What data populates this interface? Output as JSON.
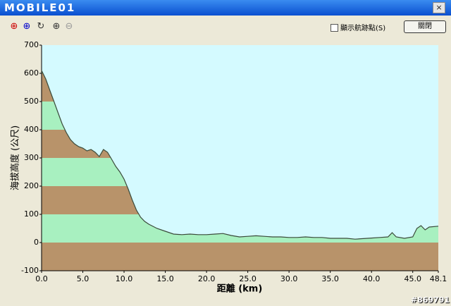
{
  "window": {
    "logo": "MOBILE01",
    "checkbox_label": "顯示航跡點(S)",
    "close_button": "關閉",
    "watermark": "#869791"
  },
  "chart_data": {
    "type": "line",
    "x_label": "距離 (km)",
    "y_label": "海拔高度 (公尺)",
    "color": "#3a4a3a",
    "x": [
      0,
      0.5,
      1,
      1.5,
      2,
      2.5,
      3,
      3.5,
      4,
      4.5,
      5,
      5.5,
      6,
      6.5,
      7,
      7.5,
      8,
      8.5,
      9,
      9.5,
      10,
      10.5,
      11,
      11.5,
      12,
      12.5,
      13,
      14,
      15,
      16,
      17,
      18,
      19,
      20,
      21,
      22,
      23,
      24,
      25,
      26,
      27,
      28,
      29,
      30,
      31,
      32,
      33,
      34,
      35,
      36,
      37,
      38,
      39,
      40,
      41,
      42,
      42.5,
      43,
      44,
      45,
      45.5,
      46,
      46.5,
      47,
      48.1
    ],
    "values": [
      610,
      580,
      540,
      500,
      460,
      420,
      390,
      365,
      350,
      340,
      335,
      325,
      330,
      320,
      305,
      330,
      320,
      295,
      270,
      250,
      225,
      190,
      150,
      115,
      90,
      75,
      65,
      50,
      40,
      30,
      28,
      30,
      28,
      28,
      30,
      32,
      25,
      20,
      22,
      24,
      22,
      20,
      20,
      18,
      18,
      20,
      18,
      18,
      15,
      15,
      15,
      12,
      14,
      16,
      18,
      20,
      35,
      20,
      15,
      20,
      50,
      60,
      45,
      55,
      58
    ],
    "xlim": [
      0,
      48.1
    ],
    "ylim": [
      -100,
      700
    ],
    "xticks": [
      {
        "value": 0,
        "label": "0.0"
      },
      {
        "value": 5,
        "label": "5.0"
      },
      {
        "value": 10,
        "label": "10.0"
      },
      {
        "value": 15,
        "label": "15.0"
      },
      {
        "value": 20,
        "label": "20.0"
      },
      {
        "value": 25,
        "label": "25.0"
      },
      {
        "value": 30,
        "label": "30.0"
      },
      {
        "value": 35,
        "label": "35.0"
      },
      {
        "value": 40,
        "label": "40.0"
      },
      {
        "value": 45,
        "label": "45.0"
      },
      48.1
    ],
    "yticks": [
      -100,
      0,
      100,
      200,
      300,
      400,
      500,
      600,
      700
    ]
  }
}
